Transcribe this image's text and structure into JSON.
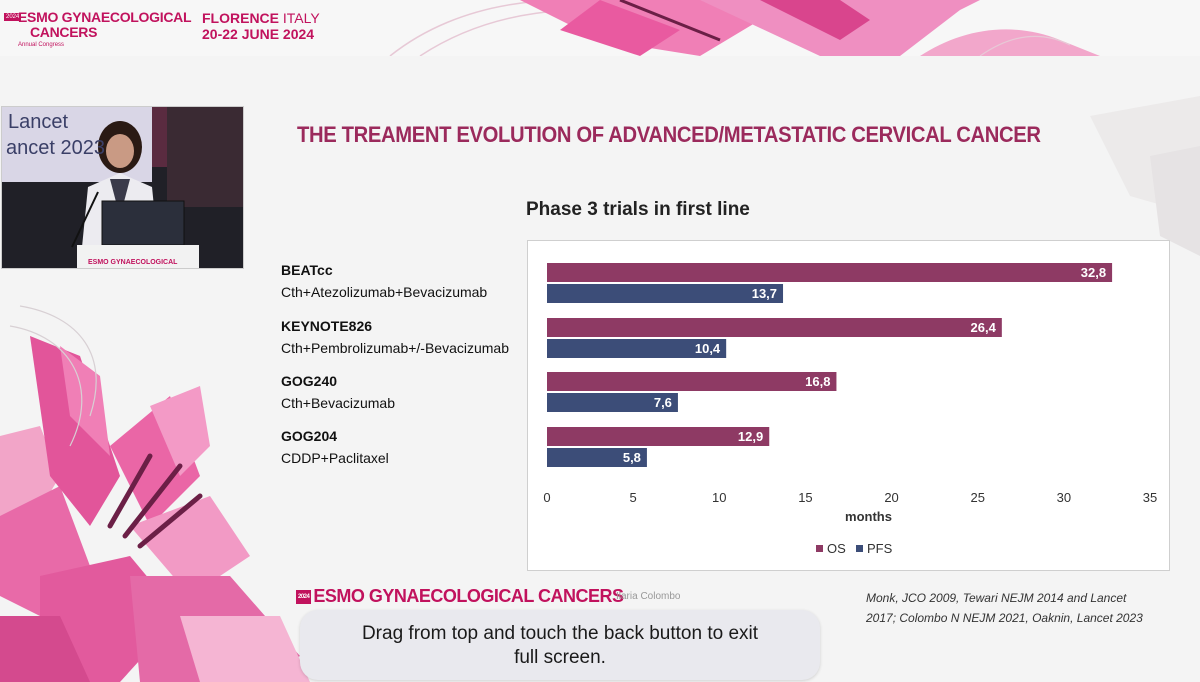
{
  "header": {
    "logo_year": "2024",
    "logo_line1": "ESMO GYNAECOLOGICAL",
    "logo_line2": "CANCERS",
    "logo_sub": "Annual Congress",
    "location_city": "FLORENCE",
    "location_country": "ITALY",
    "dates": "20-22 JUNE 2024"
  },
  "video": {
    "banner_text": "ESMO GYNAECOLOGICAL",
    "screen_text_1": "Lancet",
    "screen_text_2": "ancet 2023"
  },
  "slide": {
    "title": "THE TREAMENT EVOLUTION OF ADVANCED/METASTATIC CERVICAL CANCER",
    "footer_year": "2024",
    "footer_logo": "ESMO GYNAECOLOGICAL CANCERS",
    "speaker": "Ilaria Colombo",
    "refs_line1": "Monk, JCO 2009, Tewari NEJM 2014 and Lancet",
    "refs_line2": "2017; Colombo N NEJM 2021, Oaknin, Lancet 2023"
  },
  "chart_data": {
    "type": "bar",
    "orientation": "horizontal",
    "title": "Phase 3 trials in first line",
    "xlabel": "months",
    "xlim": [
      0,
      35
    ],
    "xticks": [
      0,
      5,
      10,
      15,
      20,
      25,
      30,
      35
    ],
    "grid": false,
    "legend_position": "bottom",
    "categories": [
      {
        "name": "BEATcc",
        "regimen": "Cth+Atezolizumab+Bevacizumab"
      },
      {
        "name": "KEYNOTE826",
        "regimen": "Cth+Pembrolizumab+/-Bevacizumab"
      },
      {
        "name": "GOG240",
        "regimen": "Cth+Bevacizumab"
      },
      {
        "name": "GOG204",
        "regimen": "CDDP+Paclitaxel"
      }
    ],
    "series": [
      {
        "name": "OS",
        "color": "#8e3a64",
        "values": [
          32.8,
          26.4,
          16.8,
          12.9
        ],
        "labels": [
          "32,8",
          "26,4",
          "16,8",
          "12,9"
        ]
      },
      {
        "name": "PFS",
        "color": "#3c4d78",
        "values": [
          13.7,
          10.4,
          7.6,
          5.8
        ],
        "labels": [
          "13,7",
          "10,4",
          "7,6",
          "5,8"
        ]
      }
    ]
  },
  "toast": {
    "line1": "Drag from top and touch the back button to exit",
    "line2": "full screen."
  }
}
